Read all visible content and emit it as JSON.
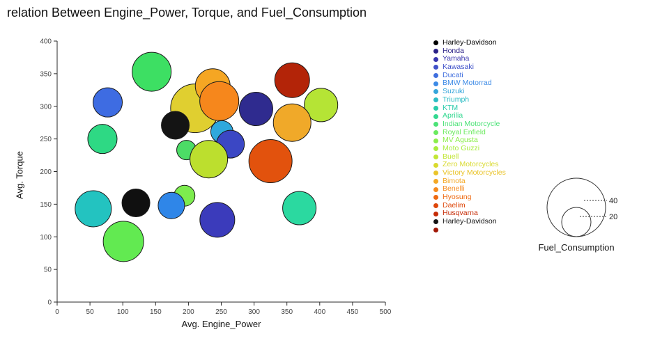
{
  "chart": {
    "title": "relation Between Engine_Power, Torque, and Fuel_Consumption",
    "x_label": "Avg. Engine_Power",
    "y_label": "Avg. Torque"
  },
  "chart_data": {
    "type": "scatter",
    "subtype": "bubble",
    "title": "relation Between Engine_Power, Torque, and Fuel_Consumption",
    "xlabel": "Avg. Engine_Power",
    "ylabel": "Avg. Torque",
    "xlim": [
      0,
      500
    ],
    "ylim": [
      0,
      400
    ],
    "x_ticks": [
      0,
      50,
      100,
      150,
      200,
      250,
      300,
      350,
      400,
      450,
      500
    ],
    "y_ticks": [
      0,
      50,
      100,
      150,
      200,
      250,
      300,
      350,
      400
    ],
    "grid": false,
    "legend_position": "right",
    "size_field": "Fuel_Consumption",
    "points": [
      {
        "label": "Indian Motorcycle",
        "x": 144,
        "y": 353,
        "size": 28,
        "color": "#3ddf63"
      },
      {
        "label": "Ducati",
        "x": 77,
        "y": 306,
        "size": 21,
        "color": "#3e6ce2"
      },
      {
        "label": "Aprilia",
        "x": 69,
        "y": 250,
        "size": 21,
        "color": "#2ed984"
      },
      {
        "label": "Zero Motorcycles",
        "x": 210,
        "y": 297,
        "size": 35,
        "color": "#e0cf30"
      },
      {
        "label": "Honda",
        "x": 303,
        "y": 296,
        "size": 24,
        "color": "#2f2b8f"
      },
      {
        "label": "Bimota",
        "x": 237,
        "y": 331,
        "size": 25,
        "color": "#f5a623"
      },
      {
        "label": "Benelli",
        "x": 247,
        "y": 308,
        "size": 28,
        "color": "#f6871c"
      },
      {
        "label": "Harley-Davidson",
        "x": 180,
        "y": 271,
        "size": 20,
        "color": "#141414"
      },
      {
        "label": "Husqvarna",
        "x": 358,
        "y": 340,
        "size": 25,
        "color": "#b32408"
      },
      {
        "label": "Buell",
        "x": 402,
        "y": 302,
        "size": 24,
        "color": "#b5e435"
      },
      {
        "label": "Victory Motorcycles",
        "x": 358,
        "y": 275,
        "size": 27,
        "color": "#f0a929"
      },
      {
        "label": "Suzuki",
        "x": 251,
        "y": 261,
        "size": 16,
        "color": "#2fa8dd"
      },
      {
        "label": "Kawasaki",
        "x": 264,
        "y": 242,
        "size": 20,
        "color": "#3b47c4"
      },
      {
        "label": "MV Agusta",
        "x": 197,
        "y": 233,
        "size": 14,
        "color": "#4cdc66"
      },
      {
        "label": "Moto Guzzi",
        "x": 231,
        "y": 219,
        "size": 27,
        "color": "#bcdf2e"
      },
      {
        "label": "Hyosung",
        "x": 325,
        "y": 216,
        "size": 31,
        "color": "#e2520d"
      },
      {
        "label": "Triumph",
        "x": 55,
        "y": 143,
        "size": 26,
        "color": "#23c3c0"
      },
      {
        "label": "Harley-Davidson",
        "x": 120,
        "y": 152,
        "size": 20,
        "color": "#101010"
      },
      {
        "label": "Royal Enfield",
        "x": 101,
        "y": 93,
        "size": 29,
        "color": "#62ea51"
      },
      {
        "label": "MV Agusta",
        "x": 194,
        "y": 163,
        "size": 15,
        "color": "#7dec4e"
      },
      {
        "label": "BMW Motorrad",
        "x": 174,
        "y": 148,
        "size": 19,
        "color": "#2f86e8"
      },
      {
        "label": "Yamaha",
        "x": 244,
        "y": 126,
        "size": 25,
        "color": "#3b3bbb"
      },
      {
        "label": "KTM",
        "x": 369,
        "y": 144,
        "size": 24,
        "color": "#2bd9a0"
      }
    ]
  },
  "legend": {
    "items": [
      {
        "label": "Harley-Davidson",
        "color": "#000000"
      },
      {
        "label": "Honda",
        "color": "#2a2086"
      },
      {
        "label": "Yamaha",
        "color": "#3936ae"
      },
      {
        "label": "Kawasaki",
        "color": "#3f51c9"
      },
      {
        "label": "Ducati",
        "color": "#3f6ede"
      },
      {
        "label": "BMW Motorrad",
        "color": "#3c8ae6"
      },
      {
        "label": "Suzuki",
        "color": "#35a5db"
      },
      {
        "label": "Triumph",
        "color": "#2bbcc4"
      },
      {
        "label": "KTM",
        "color": "#27cbaa"
      },
      {
        "label": "Aprilia",
        "color": "#33d890"
      },
      {
        "label": "Indian Motorcycle",
        "color": "#4ce277"
      },
      {
        "label": "Royal Enfield",
        "color": "#6aea5e"
      },
      {
        "label": "MV Agusta",
        "color": "#8bee4b"
      },
      {
        "label": "Moto Guzzi",
        "color": "#a8ec3d"
      },
      {
        "label": "Buell",
        "color": "#c2e634"
      },
      {
        "label": "Zero Motorcycles",
        "color": "#d9da2e"
      },
      {
        "label": "Victory Motorcycles",
        "color": "#eac42a"
      },
      {
        "label": "Bimota",
        "color": "#f4a825"
      },
      {
        "label": "Benelli",
        "color": "#f68a1d"
      },
      {
        "label": "Hyosung",
        "color": "#ee6911"
      },
      {
        "label": "Daelim",
        "color": "#de470a"
      },
      {
        "label": "Husqvarna",
        "color": "#c52b06"
      },
      {
        "label": "Harley-Davidson",
        "color": "#141414"
      },
      {
        "label": "",
        "color": "#a01605"
      }
    ]
  },
  "size_legend": {
    "title": "Fuel_Consumption",
    "entries": [
      {
        "value": "40",
        "radius": 42
      },
      {
        "value": "20",
        "radius": 21
      }
    ]
  },
  "style": {
    "axis_color": "#2a2a2a",
    "tick_label_color": "#444444",
    "bubble_stroke": "#1a1a1a"
  }
}
